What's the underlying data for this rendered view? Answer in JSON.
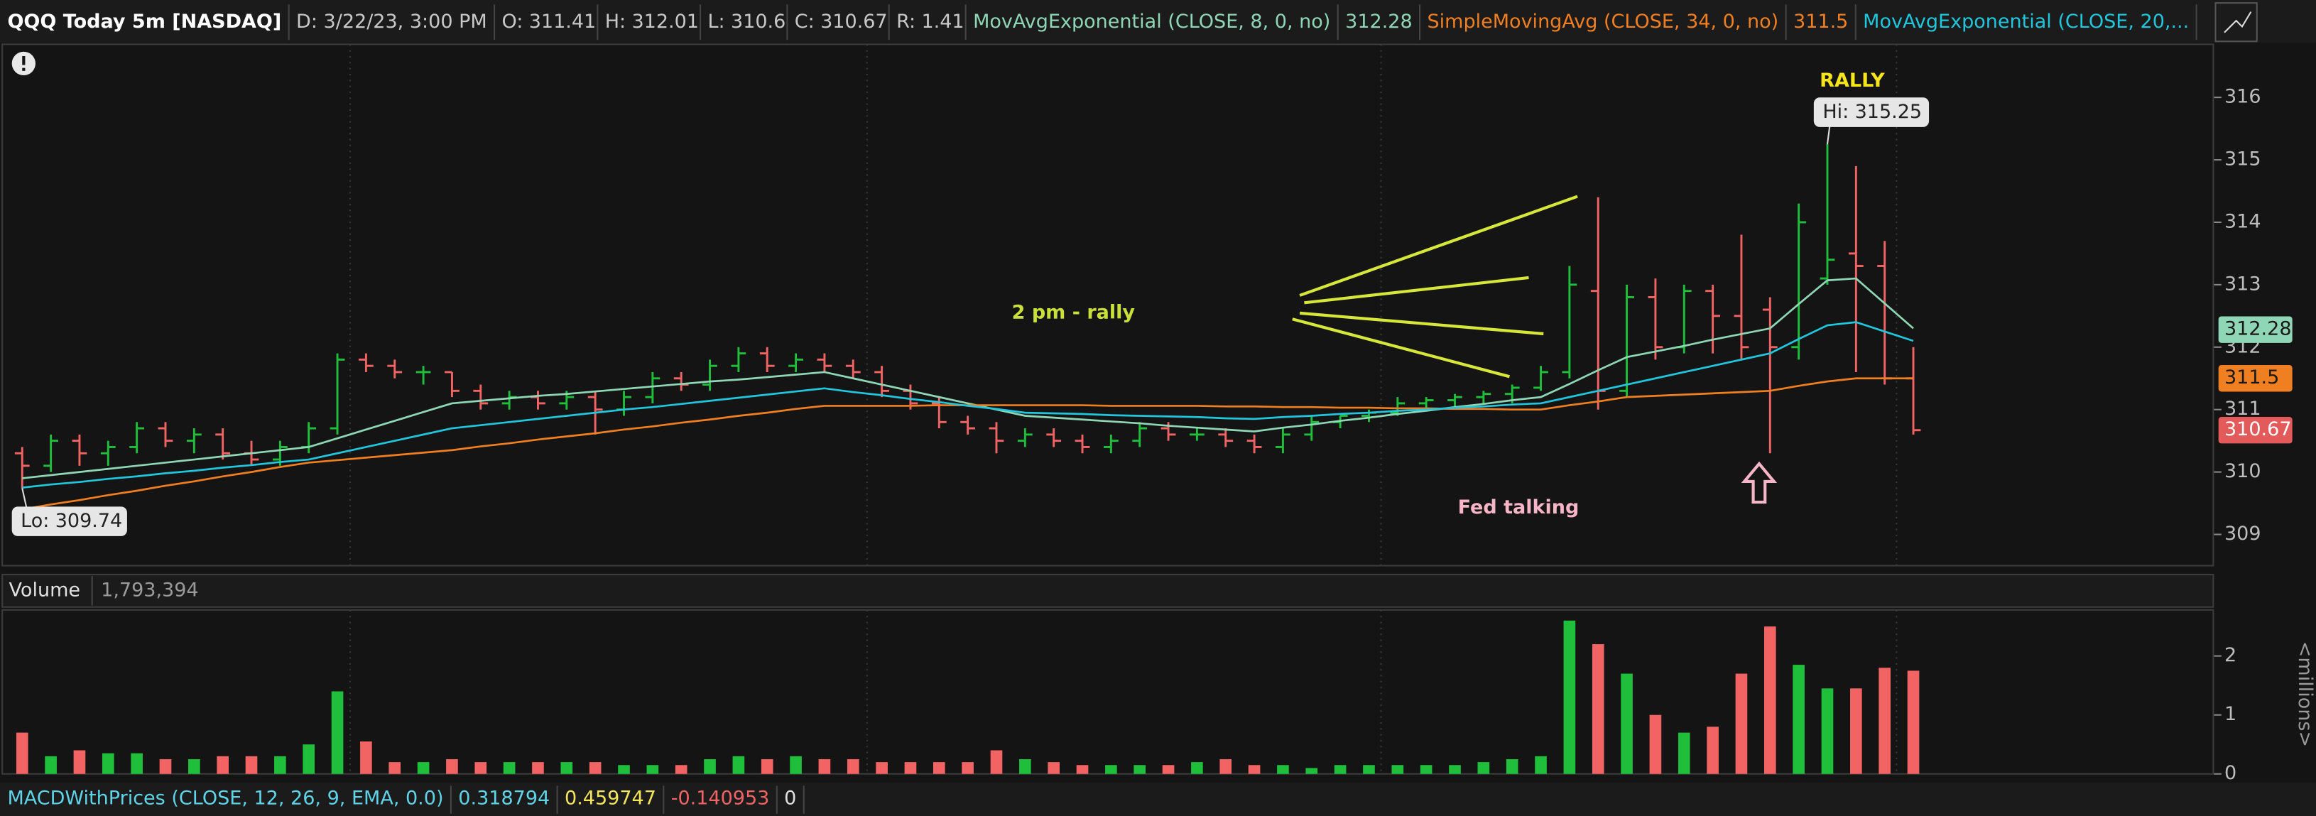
{
  "header": {
    "symbol": "QQQ Today 5m [NASDAQ]",
    "date": "D: 3/22/23, 3:00 PM",
    "quote": [
      {
        "label": "O:",
        "value": 311.41
      },
      {
        "label": "H:",
        "value": 312.01
      },
      {
        "label": "L:",
        "value": 310.6
      },
      {
        "label": "C:",
        "value": 310.67
      },
      {
        "label": "R:",
        "value": 1.41
      }
    ]
  },
  "chart_data": [
    {
      "type": "candlestick",
      "up_color": "#1fbf3b",
      "down_color": "#f26464",
      "open": [
        310.3,
        310.1,
        310.5,
        310.3,
        310.4,
        310.7,
        310.5,
        310.6,
        310.3,
        310.2,
        310.4,
        310.7,
        311.8,
        311.7,
        311.6,
        311.6,
        311.3,
        311.1,
        311.2,
        311.1,
        311.2,
        311.0,
        311.2,
        311.5,
        311.4,
        311.7,
        311.9,
        311.7,
        311.8,
        311.7,
        311.6,
        311.3,
        311.1,
        310.8,
        310.7,
        310.5,
        310.6,
        310.5,
        310.4,
        310.5,
        310.7,
        310.6,
        310.6,
        310.5,
        310.4,
        310.6,
        310.8,
        310.9,
        310.95,
        311.1,
        311.15,
        311.2,
        311.25,
        311.35,
        311.6,
        312.9,
        311.3,
        312.8,
        312.0,
        312.9,
        312.5,
        312.6,
        312.0,
        313.1,
        313.5,
        313.3,
        311.5
      ],
      "high": [
        310.4,
        310.6,
        310.6,
        310.5,
        310.8,
        310.8,
        310.7,
        310.7,
        310.5,
        310.5,
        310.8,
        311.9,
        311.9,
        311.8,
        311.7,
        311.6,
        311.4,
        311.3,
        311.3,
        311.3,
        311.3,
        311.3,
        311.6,
        311.6,
        311.8,
        312.0,
        312.0,
        311.9,
        311.9,
        311.8,
        311.7,
        311.4,
        311.2,
        310.9,
        310.8,
        310.7,
        310.7,
        310.6,
        310.6,
        310.8,
        310.8,
        310.7,
        310.7,
        310.6,
        310.7,
        310.9,
        310.9,
        311.0,
        311.2,
        311.2,
        311.25,
        311.3,
        311.4,
        311.7,
        313.3,
        314.4,
        313.0,
        313.1,
        313.0,
        313.0,
        313.8,
        312.8,
        314.3,
        315.25,
        314.9,
        313.7,
        312.0
      ],
      "low": [
        309.74,
        310.0,
        310.1,
        310.1,
        310.3,
        310.4,
        310.3,
        310.2,
        310.1,
        310.1,
        310.3,
        310.6,
        311.6,
        311.5,
        311.4,
        311.2,
        311.0,
        311.0,
        311.0,
        311.0,
        310.6,
        310.9,
        311.1,
        311.3,
        311.3,
        311.6,
        311.6,
        311.6,
        311.6,
        311.5,
        311.2,
        311.0,
        310.7,
        310.6,
        310.3,
        310.4,
        310.4,
        310.3,
        310.3,
        310.4,
        310.5,
        310.5,
        310.4,
        310.3,
        310.3,
        310.5,
        310.7,
        310.8,
        310.9,
        311.0,
        311.05,
        311.1,
        311.1,
        311.3,
        311.5,
        311.0,
        311.2,
        311.8,
        311.9,
        311.9,
        311.8,
        310.3,
        311.8,
        313.0,
        311.6,
        311.4,
        310.6
      ],
      "close": [
        310.1,
        310.5,
        310.3,
        310.4,
        310.7,
        310.5,
        310.6,
        310.3,
        310.2,
        310.4,
        310.7,
        311.8,
        311.7,
        311.6,
        311.6,
        311.3,
        311.1,
        311.2,
        311.1,
        311.2,
        311.0,
        311.2,
        311.5,
        311.4,
        311.7,
        311.9,
        311.7,
        311.8,
        311.7,
        311.6,
        311.3,
        311.1,
        310.8,
        310.7,
        310.5,
        310.6,
        310.5,
        310.4,
        310.5,
        310.7,
        310.6,
        310.6,
        310.5,
        310.4,
        310.6,
        310.8,
        310.9,
        310.95,
        311.1,
        311.15,
        311.2,
        311.25,
        311.35,
        311.6,
        313.0,
        311.3,
        312.8,
        312.0,
        312.9,
        312.5,
        312.0,
        312.0,
        314.0,
        313.4,
        313.3,
        311.5,
        310.67
      ],
      "close_color": "#e35a5a",
      "series": [
        {
          "name": "MovAvgExponential (CLOSE, 8, 0, no)",
          "color": "#8fd6b6",
          "current": 312.28,
          "values": [
            309.9,
            309.95,
            310.0,
            310.05,
            310.1,
            310.15,
            310.2,
            310.25,
            310.3,
            310.35,
            310.4,
            310.54,
            310.68,
            310.82,
            310.96,
            311.1,
            311.14,
            311.18,
            311.22,
            311.25,
            311.29,
            311.33,
            311.37,
            311.41,
            311.45,
            311.48,
            311.52,
            311.56,
            311.6,
            311.5,
            311.4,
            311.3,
            311.2,
            311.1,
            311.0,
            310.9,
            310.87,
            310.84,
            310.81,
            310.78,
            310.74,
            310.71,
            310.68,
            310.65,
            310.71,
            310.76,
            310.82,
            310.87,
            310.93,
            310.98,
            311.04,
            311.09,
            311.15,
            311.2,
            311.41,
            311.63,
            311.84,
            311.93,
            312.02,
            312.12,
            312.21,
            312.3,
            312.69,
            313.07,
            313.1,
            312.7,
            312.3
          ]
        },
        {
          "name": "SimpleMovingAvg (CLOSE, 34, 0, no)",
          "color": "#f07f22",
          "current": 311.5,
          "values": [
            309.4,
            309.48,
            309.55,
            309.63,
            309.7,
            309.78,
            309.85,
            309.93,
            310.0,
            310.08,
            310.15,
            310.19,
            310.23,
            310.27,
            310.31,
            310.35,
            310.41,
            310.46,
            310.52,
            310.57,
            310.62,
            310.68,
            310.73,
            310.79,
            310.84,
            310.9,
            310.95,
            311.01,
            311.06,
            311.06,
            311.06,
            311.06,
            311.07,
            311.07,
            311.07,
            311.07,
            311.07,
            311.07,
            311.06,
            311.06,
            311.06,
            311.06,
            311.05,
            311.05,
            311.04,
            311.04,
            311.03,
            311.03,
            311.02,
            311.02,
            311.01,
            311.01,
            311.0,
            311.0,
            311.07,
            311.13,
            311.2,
            311.22,
            311.24,
            311.26,
            311.28,
            311.3,
            311.38,
            311.45,
            311.5,
            311.5,
            311.5
          ]
        },
        {
          "name": "MovAvgExponential (CLOSE, 20,...",
          "color": "#22c6dc",
          "values": [
            309.75,
            309.8,
            309.84,
            309.89,
            309.93,
            309.98,
            310.02,
            310.07,
            310.11,
            310.16,
            310.2,
            310.3,
            310.4,
            310.5,
            310.6,
            310.7,
            310.75,
            310.8,
            310.85,
            310.9,
            310.95,
            311.0,
            311.04,
            311.09,
            311.14,
            311.19,
            311.24,
            311.29,
            311.34,
            311.28,
            311.23,
            311.17,
            311.12,
            311.06,
            311.01,
            310.95,
            310.94,
            310.93,
            310.91,
            310.9,
            310.89,
            310.88,
            310.86,
            310.85,
            310.88,
            310.9,
            310.93,
            310.95,
            310.98,
            311.0,
            311.03,
            311.05,
            311.08,
            311.1,
            311.2,
            311.3,
            311.4,
            311.5,
            311.6,
            311.7,
            311.8,
            311.9,
            312.13,
            312.35,
            312.4,
            312.25,
            312.1
          ]
        }
      ],
      "ylim": [
        308.5,
        316.85
      ],
      "yticks": [
        309,
        310,
        311,
        312,
        313,
        314,
        315,
        316
      ],
      "hi_label": {
        "label": "Hi:",
        "value": 315.25
      },
      "lo_label": {
        "label": "Lo:",
        "value": 309.74
      },
      "annotations": [
        {
          "text": "2 pm - rally",
          "color": "#c9e03a"
        },
        {
          "text": "RALLY",
          "color": "#f5e61b"
        },
        {
          "text": "Fed talking",
          "color": "#f7b6c8"
        }
      ]
    },
    {
      "type": "bar",
      "title": "Volume",
      "total": {
        "value": 1793394,
        "label": "1,793,394"
      },
      "axis_label": "<millions>",
      "values": [
        0.7,
        0.3,
        0.4,
        0.35,
        0.35,
        0.25,
        0.25,
        0.3,
        0.3,
        0.3,
        0.5,
        1.4,
        0.55,
        0.2,
        0.2,
        0.25,
        0.2,
        0.2,
        0.2,
        0.2,
        0.2,
        0.15,
        0.15,
        0.15,
        0.25,
        0.3,
        0.25,
        0.3,
        0.25,
        0.25,
        0.2,
        0.2,
        0.2,
        0.2,
        0.4,
        0.25,
        0.2,
        0.15,
        0.15,
        0.15,
        0.15,
        0.2,
        0.25,
        0.15,
        0.15,
        0.1,
        0.15,
        0.15,
        0.15,
        0.15,
        0.15,
        0.2,
        0.25,
        0.3,
        2.6,
        2.2,
        1.7,
        1.0,
        0.7,
        0.8,
        1.7,
        2.5,
        1.85,
        1.45,
        1.45,
        1.8,
        1.75
      ],
      "ylim": [
        0,
        2.78
      ],
      "yticks": [
        0,
        1,
        2
      ]
    }
  ],
  "macd": {
    "name": "MACDWithPrices (CLOSE, 12, 26, 9, EMA, 0.0)",
    "values": [
      0.318794,
      0.459747,
      -0.140953,
      0
    ],
    "colors": [
      "#5fd3e8",
      "#f3e45a",
      "#f26464",
      "#e0e0e0"
    ]
  }
}
